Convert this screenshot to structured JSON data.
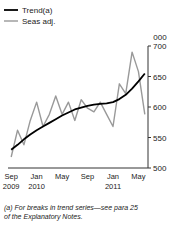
{
  "chart_data": {
    "type": "line",
    "categories": [
      "Sep",
      null,
      null,
      null,
      "Jan",
      null,
      null,
      null,
      "May",
      null,
      null,
      null,
      "Sep",
      null,
      null,
      null,
      "Jan",
      null,
      null,
      null,
      "May",
      null
    ],
    "series": [
      {
        "name": "Trend(a)",
        "color": "#000000",
        "values": [
          530,
          538,
          547,
          555,
          562,
          568,
          574,
          580,
          586,
          591,
          596,
          599,
          602,
          604,
          605,
          606,
          608,
          613,
          620,
          630,
          642,
          655
        ]
      },
      {
        "name": "Seas adj.",
        "color": "#999999",
        "values": [
          518,
          562,
          538,
          578,
          608,
          568,
          588,
          618,
          588,
          608,
          578,
          612,
          598,
          592,
          608,
          588,
          568,
          638,
          622,
          690,
          658,
          588
        ]
      }
    ],
    "ylim": [
      500,
      700
    ],
    "yticks": [
      500,
      550,
      600,
      650,
      700
    ],
    "y_label": "000",
    "annotations": [
      {
        "text": "2009",
        "at": 0
      },
      {
        "text": "2010",
        "at": 4
      },
      {
        "text": "2011",
        "at": 16
      }
    ],
    "notes": [
      "(a) For breaks in trend series—see para 25",
      "of the Explanatory Notes."
    ],
    "legend": "upper left",
    "grid": false
  }
}
